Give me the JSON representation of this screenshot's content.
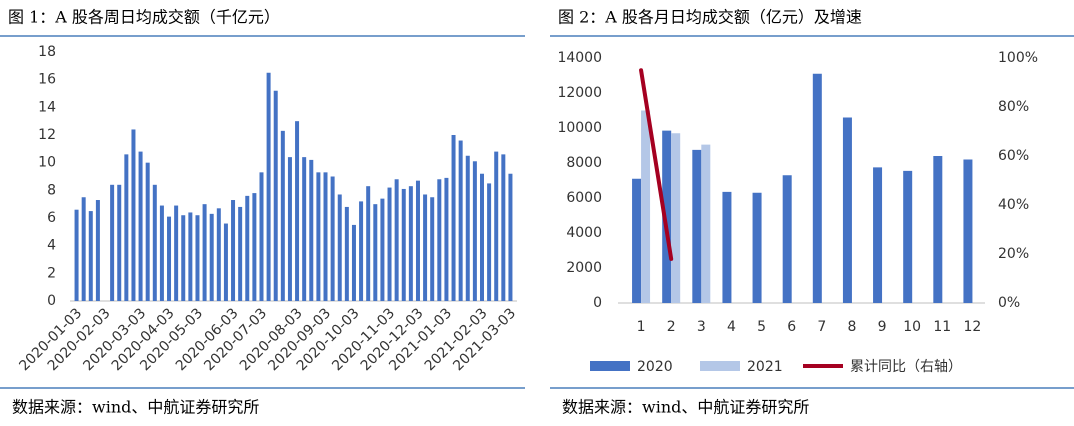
{
  "chart_data": [
    {
      "type": "bar",
      "title": "图 1：A 股各周日均成交额（千亿元）",
      "source": "数据来源：wind、中航证券研究所",
      "categories": [
        "2020-01-03",
        null,
        null,
        null,
        "2020-02-03",
        null,
        null,
        null,
        null,
        "2020-03-03",
        null,
        null,
        null,
        "2020-04-03",
        null,
        null,
        null,
        "2020-05-03",
        null,
        null,
        null,
        null,
        "2020-06-03",
        null,
        null,
        null,
        "2020-07-03",
        null,
        null,
        null,
        null,
        "2020-08-03",
        null,
        null,
        null,
        "2020-09-03",
        null,
        null,
        null,
        "2020-10-03",
        null,
        null,
        null,
        null,
        "2020-11-03",
        null,
        null,
        null,
        "2020-12-03",
        null,
        null,
        null,
        "2021-01-03",
        null,
        null,
        null,
        null,
        "2021-02-03",
        null,
        null,
        null,
        "2021-03-03"
      ],
      "values": [
        6.6,
        7.5,
        6.5,
        7.3,
        null,
        8.4,
        8.4,
        10.6,
        12.4,
        10.8,
        10.0,
        8.4,
        6.9,
        6.1,
        6.9,
        6.2,
        6.4,
        6.2,
        7.0,
        6.3,
        6.7,
        5.6,
        7.3,
        6.8,
        7.6,
        7.8,
        9.3,
        16.5,
        15.2,
        12.3,
        10.4,
        13.0,
        10.4,
        10.2,
        9.3,
        9.3,
        9.0,
        7.7,
        6.8,
        5.5,
        7.2,
        8.3,
        7.0,
        7.4,
        8.2,
        8.8,
        8.1,
        8.3,
        8.7,
        7.7,
        7.5,
        8.8,
        8.9,
        12.0,
        11.6,
        10.5,
        10.1,
        9.2,
        8.5,
        10.8,
        10.6,
        9.2
      ],
      "color": "#4472c4",
      "ylim": [
        0,
        18
      ],
      "yticks": [
        0,
        2,
        4,
        6,
        8,
        10,
        12,
        14,
        16,
        18
      ]
    },
    {
      "type": "combo",
      "title": "图 2：A 股各月日均成交额（亿元）及增速",
      "source": "数据来源：wind、中航证券研究所",
      "categories": [
        "1",
        "2",
        "3",
        "4",
        "5",
        "6",
        "7",
        "8",
        "9",
        "10",
        "11",
        "12"
      ],
      "series": [
        {
          "name": "2020",
          "type": "bar",
          "color": "#4472c4",
          "values": [
            7100,
            9850,
            8750,
            6350,
            6300,
            7300,
            13100,
            10600,
            7750,
            7550,
            8400,
            8200
          ]
        },
        {
          "name": "2021",
          "type": "bar",
          "color": "#b4c7e7",
          "values": [
            11000,
            9700,
            9050,
            null,
            null,
            null,
            null,
            null,
            null,
            null,
            null,
            null
          ]
        },
        {
          "name": "累计同比（右轴）",
          "type": "line",
          "axis": "y2",
          "color": "#a50021",
          "values": [
            95,
            18,
            null,
            null,
            null,
            null,
            null,
            null,
            null,
            null,
            null,
            null
          ]
        }
      ],
      "ylim": [
        0,
        14000
      ],
      "yticks": [
        0,
        2000,
        4000,
        6000,
        8000,
        10000,
        12000,
        14000
      ],
      "y2lim": [
        0,
        100
      ],
      "y2ticks": [
        {
          "value": 0,
          "label": "0%"
        },
        {
          "value": 20,
          "label": "20%"
        },
        {
          "value": 40,
          "label": "40%"
        },
        {
          "value": 60,
          "label": "60%"
        },
        {
          "value": 80,
          "label": "80%"
        },
        {
          "value": 100,
          "label": "100%"
        }
      ],
      "legend": "bottom"
    }
  ]
}
